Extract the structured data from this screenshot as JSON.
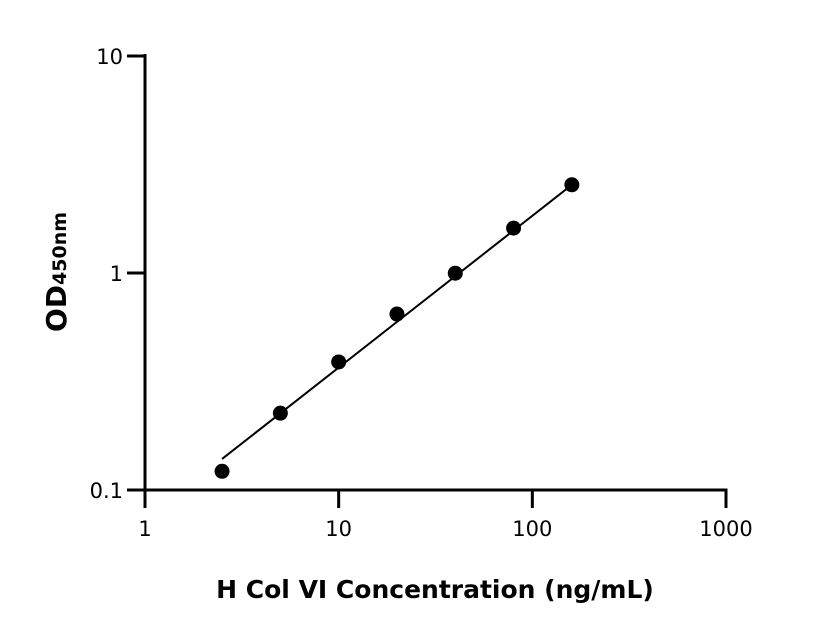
{
  "chart_data": {
    "type": "scatter",
    "title": "",
    "xlabel": "H Col VI Concentration (ng/mL)",
    "ylabel_main": "OD",
    "ylabel_sub": "450nm",
    "x_scale": "log",
    "y_scale": "log",
    "xlim": [
      1,
      1000
    ],
    "ylim": [
      0.1,
      10
    ],
    "x_ticks": [
      "1",
      "10",
      "100",
      "1000"
    ],
    "y_ticks": [
      "0.1",
      "1",
      "10"
    ],
    "grid": false,
    "series": [
      {
        "x": [
          2.5,
          5,
          10,
          20,
          40,
          80,
          160
        ],
        "y": [
          0.122,
          0.226,
          0.389,
          0.647,
          0.998,
          1.61,
          2.55
        ],
        "color": "#000000"
      }
    ],
    "fit_line": {
      "x": [
        2.5,
        160
      ],
      "y": [
        0.139,
        2.55
      ],
      "color": "#000000"
    }
  }
}
